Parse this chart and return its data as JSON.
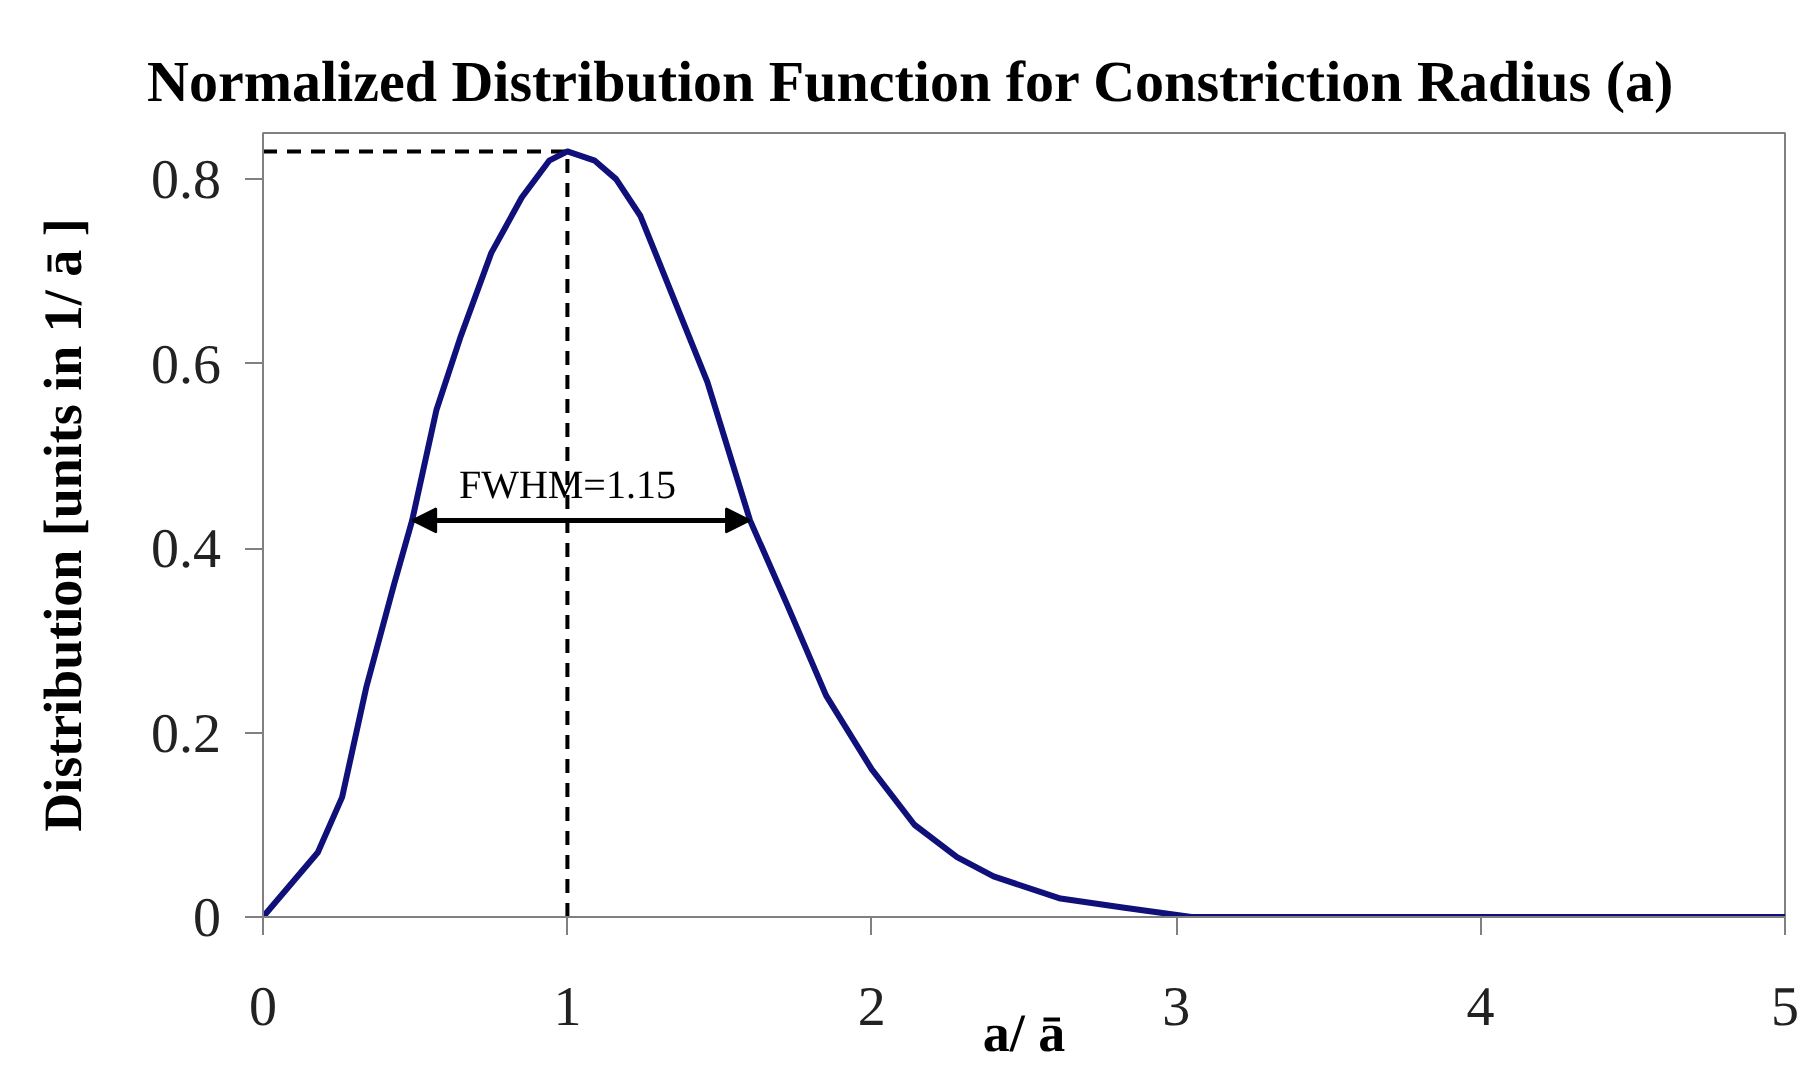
{
  "chart_data": {
    "type": "line",
    "title": "Normalized Distribution Function for Constriction Radius (a)",
    "xlabel": "a/ ā",
    "ylabel": "Distribution [units in 1/ ā ]",
    "xlim": [
      0,
      5
    ],
    "ylim": [
      0,
      0.85
    ],
    "xticks": [
      0,
      1,
      2,
      3,
      4,
      5
    ],
    "yticks": [
      0,
      0.2,
      0.4,
      0.6,
      0.8
    ],
    "grid": false,
    "marker": "none",
    "line_style": "solid",
    "series": [
      {
        "color": "#10107a",
        "x": [
          0,
          0.18,
          0.26,
          0.34,
          0.43,
          0.49,
          0.57,
          0.65,
          0.75,
          0.85,
          0.94,
          1.0,
          1.09,
          1.16,
          1.24,
          1.35,
          1.46,
          1.6,
          1.72,
          1.85,
          2.0,
          2.14,
          2.28,
          2.4,
          2.62,
          2.83,
          3.05,
          3.5,
          4,
          4.5,
          5
        ],
        "values": [
          0,
          0.07,
          0.13,
          0.25,
          0.36,
          0.43,
          0.55,
          0.63,
          0.72,
          0.78,
          0.82,
          0.83,
          0.82,
          0.8,
          0.76,
          0.67,
          0.58,
          0.43,
          0.34,
          0.24,
          0.16,
          0.1,
          0.065,
          0.044,
          0.02,
          0.01,
          0,
          0,
          0,
          0,
          0
        ]
      }
    ],
    "ref_lines": [
      {
        "axis": "x",
        "value": 1,
        "color": "#000000",
        "line_style": "dashed"
      },
      {
        "axis": "y",
        "value": 0.83,
        "color": "#000000",
        "line_style": "dashed"
      }
    ],
    "annotations": [
      {
        "text": "FWHM=1.15",
        "x": 1,
        "y": 0.43
      }
    ]
  }
}
